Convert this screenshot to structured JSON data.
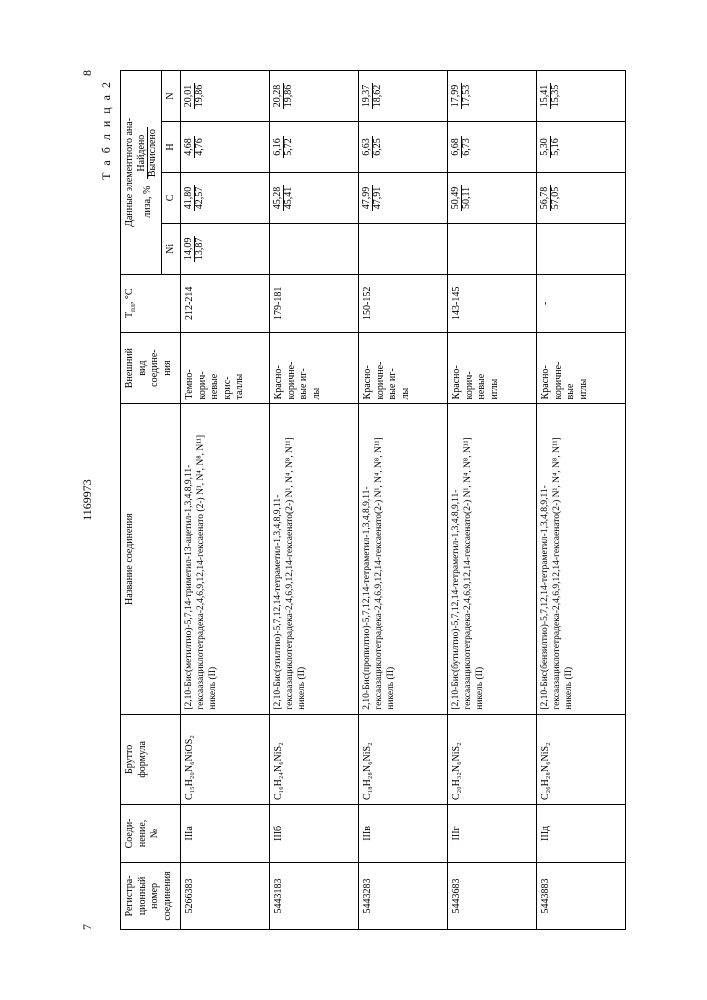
{
  "header": {
    "page_left": "7",
    "doc_number": "1169973",
    "page_right": "8",
    "table_caption": "Т а б л и ц а 2"
  },
  "columns": {
    "reg": "Регистра-\nционный\nномер\nсоединения",
    "comp": "Соеди-\nнение,\n№",
    "formula": "Брутто\nформула",
    "name": "Название соединения",
    "appearance": "Внешний\nвид\nсоедине-\nния",
    "analysis_top": "Данные элементного ана-\nлиза, %",
    "analysis_found": "Найдено",
    "analysis_calc": "Вычислено",
    "ni": "Ni",
    "c": "C",
    "h": "H",
    "n": "N"
  },
  "rows": [
    {
      "reg": "5266383",
      "comp": "IIIа",
      "formula": "C₁₅H₂₀N₆NiOS₂",
      "name": "[2,10-Бис(метилтио)-5,7,14-триметил-13-ацетил-1,3,4,8,9,11-гексаазациклотетрадека-2,4,6,9,12,14-гексаенато (2-) N¹, N⁴, N⁸, N¹¹] никель (II)",
      "appearance": "Темно-\nкорич-\nневые\nкрис-\nталлы",
      "tpl": "212-214",
      "ni": {
        "found": "14,09",
        "calc": "13,87"
      },
      "c": {
        "found": "41,80",
        "calc": "42,57"
      },
      "h": {
        "found": "4,68",
        "calc": "4,76"
      },
      "n": {
        "found": "20,01",
        "calc": "19,86"
      }
    },
    {
      "reg": "5443183",
      "comp": "IIIб",
      "formula": "C₁₆H₂₄N₆NiS₂",
      "name": "[2,10-Бис(этилтио)-5,7,12,14-тетраметил-1,3,4,8,9,11-гексаазациклотетрадека-2,4,6,9,12,14-гексаенато(2-) N¹, N⁴, N⁸, N¹¹] никель (II)",
      "appearance": "Красно-\nкоричне-\nвые иг-\nлы",
      "tpl": "179-181",
      "ni": {
        "found": "",
        "calc": ""
      },
      "c": {
        "found": "45,28",
        "calc": "45,41"
      },
      "h": {
        "found": "6,16",
        "calc": "5,72"
      },
      "n": {
        "found": "20,28",
        "calc": "19,86"
      }
    },
    {
      "reg": "5443283",
      "comp": "IIIв",
      "formula": "C₁₈H₂₈N₆NiS₂",
      "name": "2,10-Бис(пропилтио)-5,7,12,14-тетраметил-1,3,4,8,9,11-гексаазациклотетрадека-2,4,6,9,12,14-гексаенато(2-) N¹, N⁴, N⁸, N¹¹] никель (II)",
      "appearance": "Красно-\nкоричне-\nвые иг-\nлы",
      "tpl": "150-152",
      "ni": {
        "found": "",
        "calc": ""
      },
      "c": {
        "found": "47,99",
        "calc": "47,91"
      },
      "h": {
        "found": "6,63",
        "calc": "6,25"
      },
      "n": {
        "found": "19,37",
        "calc": "18,62"
      }
    },
    {
      "reg": "5443683",
      "comp": "IIIг",
      "formula": "C₂₀H₃₂N₆NiS₂",
      "name": "[2,10-Бис(бутилтио)-5,7,12,14-тетраметил-1,3,4,8,9,11-гексаазациклотетрадека-2,4,6,9,12,14-гексаенато(2-) N¹, N⁴, N⁸, N¹¹] никель (II)",
      "appearance": "Красно-\nкорич-\nневые\nиглы",
      "tpl": "143-145",
      "ni": {
        "found": "",
        "calc": ""
      },
      "c": {
        "found": "50,49",
        "calc": "50,11"
      },
      "h": {
        "found": "6,68",
        "calc": "6,73"
      },
      "n": {
        "found": "17,99",
        "calc": "17,53"
      }
    },
    {
      "reg": "5443883",
      "comp": "IIIд",
      "formula": "C₂₆H₂₈N₆NiS₂",
      "name": "[2,10-Бис(бензилтио)-5,7,12,14-тетраметил-1,3,4,8,9,11-гексаазациклотетрадека-2,4,6,9,12,14-гексаенато(2-) N¹, N⁴, N⁸, N¹¹] никель (II)",
      "appearance": "Красно-\nкоричне-\nвые\nиглы",
      "tpl": "-",
      "ni": {
        "found": "",
        "calc": ""
      },
      "c": {
        "found": "56,78",
        "calc": "57,05"
      },
      "h": {
        "found": "5,30",
        "calc": "5,16"
      },
      "n": {
        "found": "15,41",
        "calc": "15,35"
      }
    }
  ]
}
